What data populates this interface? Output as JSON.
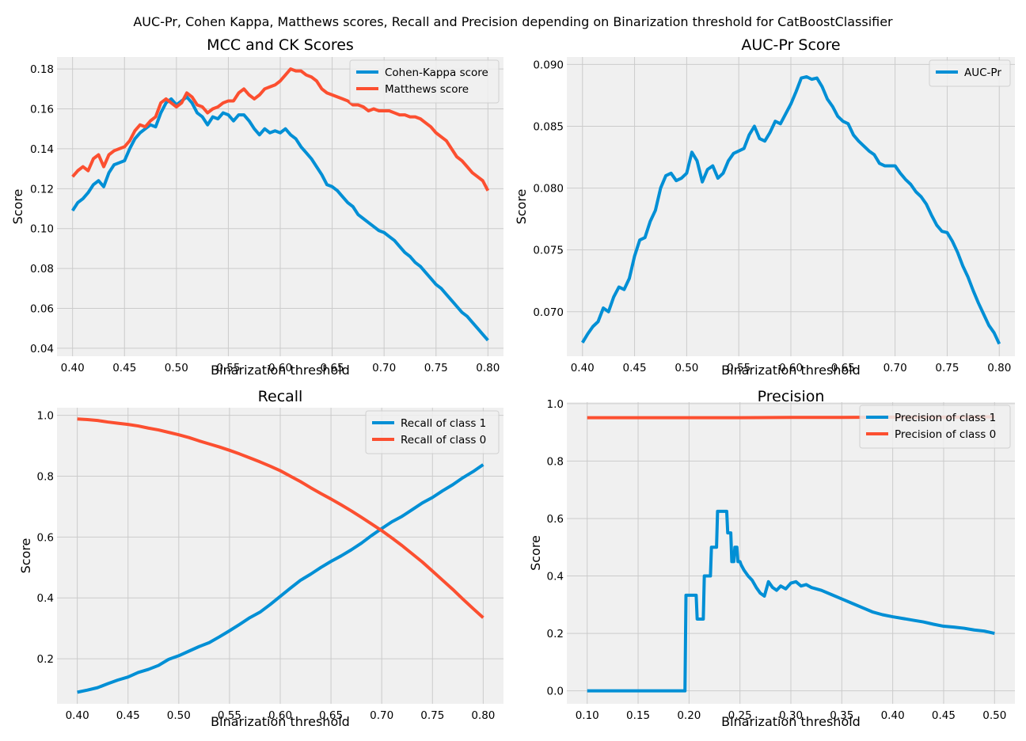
{
  "figure": {
    "suptitle": "AUC-Pr, Cohen Kappa, Matthews scores, Recall and Precision depending on Binarization threshold for CatBoostClassifier"
  },
  "colors": {
    "blue": "#008fd5",
    "orange": "#fc4f30",
    "background": "#f0f0f0",
    "grid": "#cbcbcb"
  },
  "chart_data": [
    {
      "type": "line",
      "title": "MCC and CK Scores",
      "xlabel": "Binarization threshold",
      "ylabel": "Score",
      "xlim": [
        0.385,
        0.815
      ],
      "ylim": [
        0.036,
        0.186
      ],
      "xticks": [
        0.4,
        0.45,
        0.5,
        0.55,
        0.6,
        0.65,
        0.7,
        0.75,
        0.8
      ],
      "xtick_labels": [
        "0.40",
        "0.45",
        "0.50",
        "0.55",
        "0.60",
        "0.65",
        "0.70",
        "0.75",
        "0.80"
      ],
      "yticks": [
        0.04,
        0.06,
        0.08,
        0.1,
        0.12,
        0.14,
        0.16,
        0.18
      ],
      "ytick_labels": [
        "0.04",
        "0.06",
        "0.08",
        "0.10",
        "0.12",
        "0.14",
        "0.16",
        "0.18"
      ],
      "legend_position": "top-right",
      "grid": true,
      "series": [
        {
          "name": "Cohen-Kappa score",
          "color": "#008fd5",
          "x": [
            0.4,
            0.405,
            0.41,
            0.415,
            0.42,
            0.425,
            0.43,
            0.435,
            0.44,
            0.445,
            0.45,
            0.455,
            0.46,
            0.465,
            0.47,
            0.475,
            0.48,
            0.485,
            0.49,
            0.495,
            0.5,
            0.505,
            0.51,
            0.515,
            0.52,
            0.525,
            0.53,
            0.535,
            0.54,
            0.545,
            0.55,
            0.555,
            0.56,
            0.565,
            0.57,
            0.575,
            0.58,
            0.585,
            0.59,
            0.595,
            0.6,
            0.605,
            0.61,
            0.615,
            0.62,
            0.625,
            0.63,
            0.635,
            0.64,
            0.645,
            0.65,
            0.655,
            0.66,
            0.665,
            0.67,
            0.675,
            0.68,
            0.685,
            0.69,
            0.695,
            0.7,
            0.705,
            0.71,
            0.715,
            0.72,
            0.725,
            0.73,
            0.735,
            0.74,
            0.745,
            0.75,
            0.755,
            0.76,
            0.765,
            0.77,
            0.775,
            0.78,
            0.785,
            0.79,
            0.795,
            0.8
          ],
          "y": [
            0.109,
            0.113,
            0.115,
            0.118,
            0.122,
            0.124,
            0.121,
            0.128,
            0.132,
            0.133,
            0.134,
            0.14,
            0.145,
            0.148,
            0.15,
            0.152,
            0.151,
            0.158,
            0.163,
            0.165,
            0.162,
            0.164,
            0.166,
            0.163,
            0.158,
            0.156,
            0.152,
            0.156,
            0.155,
            0.158,
            0.157,
            0.154,
            0.157,
            0.157,
            0.154,
            0.15,
            0.147,
            0.15,
            0.148,
            0.149,
            0.148,
            0.15,
            0.147,
            0.145,
            0.141,
            0.138,
            0.135,
            0.131,
            0.127,
            0.122,
            0.121,
            0.119,
            0.116,
            0.113,
            0.111,
            0.107,
            0.105,
            0.103,
            0.101,
            0.099,
            0.098,
            0.096,
            0.094,
            0.091,
            0.088,
            0.086,
            0.083,
            0.081,
            0.078,
            0.075,
            0.072,
            0.07,
            0.067,
            0.064,
            0.061,
            0.058,
            0.056,
            0.053,
            0.05,
            0.047,
            0.044
          ]
        },
        {
          "name": "Matthews score",
          "color": "#fc4f30",
          "x": [
            0.4,
            0.405,
            0.41,
            0.415,
            0.42,
            0.425,
            0.43,
            0.435,
            0.44,
            0.445,
            0.45,
            0.455,
            0.46,
            0.465,
            0.47,
            0.475,
            0.48,
            0.485,
            0.49,
            0.495,
            0.5,
            0.505,
            0.51,
            0.515,
            0.52,
            0.525,
            0.53,
            0.535,
            0.54,
            0.545,
            0.55,
            0.555,
            0.56,
            0.565,
            0.57,
            0.575,
            0.58,
            0.585,
            0.59,
            0.595,
            0.6,
            0.605,
            0.61,
            0.615,
            0.62,
            0.625,
            0.63,
            0.635,
            0.64,
            0.645,
            0.65,
            0.655,
            0.66,
            0.665,
            0.67,
            0.675,
            0.68,
            0.685,
            0.69,
            0.695,
            0.7,
            0.705,
            0.71,
            0.715,
            0.72,
            0.725,
            0.73,
            0.735,
            0.74,
            0.745,
            0.75,
            0.755,
            0.76,
            0.765,
            0.77,
            0.775,
            0.78,
            0.785,
            0.79,
            0.795,
            0.8
          ],
          "y": [
            0.126,
            0.129,
            0.131,
            0.129,
            0.135,
            0.137,
            0.131,
            0.137,
            0.139,
            0.14,
            0.141,
            0.144,
            0.149,
            0.152,
            0.151,
            0.154,
            0.156,
            0.163,
            0.165,
            0.163,
            0.161,
            0.163,
            0.168,
            0.166,
            0.162,
            0.161,
            0.158,
            0.16,
            0.161,
            0.163,
            0.164,
            0.164,
            0.168,
            0.17,
            0.167,
            0.165,
            0.167,
            0.17,
            0.171,
            0.172,
            0.174,
            0.177,
            0.18,
            0.179,
            0.179,
            0.177,
            0.176,
            0.174,
            0.17,
            0.168,
            0.167,
            0.166,
            0.165,
            0.164,
            0.162,
            0.162,
            0.161,
            0.159,
            0.16,
            0.159,
            0.159,
            0.159,
            0.158,
            0.157,
            0.157,
            0.156,
            0.156,
            0.155,
            0.153,
            0.151,
            0.148,
            0.146,
            0.144,
            0.14,
            0.136,
            0.134,
            0.131,
            0.128,
            0.126,
            0.124,
            0.119
          ]
        }
      ]
    },
    {
      "type": "line",
      "title": "AUC-Pr Score",
      "xlabel": "Binarization threshold",
      "ylabel": "Score",
      "xlim": [
        0.385,
        0.815
      ],
      "ylim": [
        0.0664,
        0.0906
      ],
      "xticks": [
        0.4,
        0.45,
        0.5,
        0.55,
        0.6,
        0.65,
        0.7,
        0.75,
        0.8
      ],
      "xtick_labels": [
        "0.40",
        "0.45",
        "0.50",
        "0.55",
        "0.60",
        "0.65",
        "0.70",
        "0.75",
        "0.80"
      ],
      "yticks": [
        0.07,
        0.075,
        0.08,
        0.085,
        0.09
      ],
      "ytick_labels": [
        "0.070",
        "0.075",
        "0.080",
        "0.085",
        "0.090"
      ],
      "legend_position": "top-right",
      "grid": true,
      "series": [
        {
          "name": "AUC-Pr",
          "color": "#008fd5",
          "x": [
            0.4,
            0.405,
            0.41,
            0.415,
            0.42,
            0.425,
            0.43,
            0.435,
            0.44,
            0.445,
            0.45,
            0.455,
            0.46,
            0.465,
            0.47,
            0.475,
            0.48,
            0.485,
            0.49,
            0.495,
            0.5,
            0.505,
            0.51,
            0.515,
            0.52,
            0.525,
            0.53,
            0.535,
            0.54,
            0.545,
            0.55,
            0.555,
            0.56,
            0.565,
            0.57,
            0.575,
            0.58,
            0.585,
            0.59,
            0.595,
            0.6,
            0.605,
            0.61,
            0.615,
            0.62,
            0.625,
            0.63,
            0.635,
            0.64,
            0.645,
            0.65,
            0.655,
            0.66,
            0.665,
            0.67,
            0.675,
            0.68,
            0.685,
            0.69,
            0.695,
            0.7,
            0.705,
            0.71,
            0.715,
            0.72,
            0.725,
            0.73,
            0.735,
            0.74,
            0.745,
            0.75,
            0.755,
            0.76,
            0.765,
            0.77,
            0.775,
            0.78,
            0.785,
            0.79,
            0.795,
            0.8
          ],
          "y": [
            0.0675,
            0.0682,
            0.0688,
            0.0692,
            0.0703,
            0.07,
            0.0712,
            0.072,
            0.0718,
            0.0727,
            0.0745,
            0.0758,
            0.076,
            0.0773,
            0.0782,
            0.08,
            0.081,
            0.0812,
            0.0806,
            0.0808,
            0.0812,
            0.0829,
            0.0822,
            0.0805,
            0.0815,
            0.0818,
            0.0808,
            0.0812,
            0.0822,
            0.0828,
            0.083,
            0.0832,
            0.0843,
            0.085,
            0.084,
            0.0838,
            0.0845,
            0.0854,
            0.0852,
            0.086,
            0.0868,
            0.0878,
            0.0889,
            0.089,
            0.0888,
            0.0889,
            0.0882,
            0.0872,
            0.0866,
            0.0858,
            0.0854,
            0.0852,
            0.0843,
            0.0838,
            0.0834,
            0.083,
            0.0827,
            0.082,
            0.0818,
            0.0818,
            0.0818,
            0.0812,
            0.0807,
            0.0803,
            0.0797,
            0.0793,
            0.0787,
            0.0778,
            0.077,
            0.0765,
            0.0764,
            0.0757,
            0.0748,
            0.0737,
            0.0728,
            0.0717,
            0.0707,
            0.0698,
            0.0689,
            0.0683,
            0.0674
          ]
        }
      ]
    },
    {
      "type": "line",
      "title": "Recall",
      "xlabel": "Binarization threshold",
      "ylabel": "Score",
      "xlim": [
        0.38,
        0.82
      ],
      "ylim": [
        0.052,
        1.025
      ],
      "xticks": [
        0.4,
        0.45,
        0.5,
        0.55,
        0.6,
        0.65,
        0.7,
        0.75,
        0.8
      ],
      "xtick_labels": [
        "0.40",
        "0.45",
        "0.50",
        "0.55",
        "0.60",
        "0.65",
        "0.70",
        "0.75",
        "0.80"
      ],
      "yticks": [
        0.2,
        0.4,
        0.6,
        0.8,
        1.0
      ],
      "ytick_labels": [
        "0.2",
        "0.4",
        "0.6",
        "0.8",
        "1.0"
      ],
      "legend_position": "top-right",
      "grid": true,
      "series": [
        {
          "name": "Recall of class 1",
          "color": "#008fd5",
          "x": [
            0.4,
            0.41,
            0.42,
            0.43,
            0.44,
            0.45,
            0.46,
            0.47,
            0.48,
            0.49,
            0.5,
            0.51,
            0.52,
            0.53,
            0.54,
            0.55,
            0.56,
            0.57,
            0.58,
            0.59,
            0.6,
            0.61,
            0.62,
            0.63,
            0.64,
            0.65,
            0.66,
            0.67,
            0.68,
            0.69,
            0.7,
            0.71,
            0.72,
            0.73,
            0.74,
            0.75,
            0.76,
            0.77,
            0.78,
            0.79,
            0.8
          ],
          "y": [
            0.09,
            0.097,
            0.105,
            0.118,
            0.13,
            0.14,
            0.155,
            0.165,
            0.178,
            0.198,
            0.21,
            0.225,
            0.24,
            0.253,
            0.272,
            0.292,
            0.313,
            0.335,
            0.353,
            0.378,
            0.405,
            0.432,
            0.458,
            0.478,
            0.5,
            0.52,
            0.538,
            0.558,
            0.58,
            0.605,
            0.628,
            0.65,
            0.668,
            0.69,
            0.712,
            0.73,
            0.752,
            0.772,
            0.795,
            0.815,
            0.838
          ]
        },
        {
          "name": "Recall of class 0",
          "color": "#fc4f30",
          "x": [
            0.4,
            0.41,
            0.42,
            0.43,
            0.44,
            0.45,
            0.46,
            0.47,
            0.48,
            0.49,
            0.5,
            0.51,
            0.52,
            0.53,
            0.54,
            0.55,
            0.56,
            0.57,
            0.58,
            0.59,
            0.6,
            0.61,
            0.62,
            0.63,
            0.64,
            0.65,
            0.66,
            0.67,
            0.68,
            0.69,
            0.7,
            0.71,
            0.72,
            0.73,
            0.74,
            0.75,
            0.76,
            0.77,
            0.78,
            0.79,
            0.8
          ],
          "y": [
            0.988,
            0.986,
            0.983,
            0.978,
            0.974,
            0.97,
            0.965,
            0.958,
            0.952,
            0.944,
            0.936,
            0.927,
            0.916,
            0.906,
            0.896,
            0.885,
            0.873,
            0.86,
            0.847,
            0.833,
            0.818,
            0.8,
            0.782,
            0.762,
            0.743,
            0.725,
            0.706,
            0.686,
            0.665,
            0.643,
            0.621,
            0.597,
            0.572,
            0.545,
            0.518,
            0.488,
            0.458,
            0.428,
            0.396,
            0.365,
            0.335
          ]
        }
      ]
    },
    {
      "type": "line",
      "title": "Precision",
      "xlabel": "Binarization threshold",
      "ylabel": "Score",
      "xlim": [
        0.08,
        0.52
      ],
      "ylim": [
        -0.045,
        1.005
      ],
      "xticks": [
        0.1,
        0.15,
        0.2,
        0.25,
        0.3,
        0.35,
        0.4,
        0.45,
        0.5
      ],
      "xtick_labels": [
        "0.10",
        "0.15",
        "0.20",
        "0.25",
        "0.30",
        "0.35",
        "0.40",
        "0.45",
        "0.50"
      ],
      "yticks": [
        0.0,
        0.2,
        0.4,
        0.6,
        0.8,
        1.0
      ],
      "ytick_labels": [
        "0.0",
        "0.2",
        "0.4",
        "0.6",
        "0.8",
        "1.0"
      ],
      "legend_position": "top-right",
      "grid": true,
      "series": [
        {
          "name": "Precision of class 1",
          "color": "#008fd5",
          "x": [
            0.1,
            0.196,
            0.197,
            0.207,
            0.208,
            0.214,
            0.215,
            0.221,
            0.222,
            0.227,
            0.228,
            0.237,
            0.238,
            0.241,
            0.242,
            0.244,
            0.245,
            0.247,
            0.248,
            0.25,
            0.251,
            0.254,
            0.258,
            0.262,
            0.266,
            0.27,
            0.274,
            0.278,
            0.282,
            0.286,
            0.29,
            0.295,
            0.3,
            0.305,
            0.31,
            0.315,
            0.32,
            0.33,
            0.34,
            0.35,
            0.36,
            0.37,
            0.38,
            0.39,
            0.4,
            0.41,
            0.42,
            0.43,
            0.44,
            0.45,
            0.46,
            0.47,
            0.48,
            0.49,
            0.5
          ],
          "y": [
            0.0,
            0.0,
            0.333,
            0.333,
            0.25,
            0.25,
            0.4,
            0.4,
            0.5,
            0.5,
            0.625,
            0.625,
            0.55,
            0.55,
            0.45,
            0.45,
            0.5,
            0.5,
            0.45,
            0.45,
            0.44,
            0.42,
            0.4,
            0.385,
            0.36,
            0.34,
            0.33,
            0.38,
            0.36,
            0.35,
            0.365,
            0.355,
            0.375,
            0.38,
            0.365,
            0.37,
            0.36,
            0.35,
            0.335,
            0.32,
            0.305,
            0.29,
            0.275,
            0.265,
            0.258,
            0.252,
            0.246,
            0.24,
            0.232,
            0.225,
            0.222,
            0.218,
            0.212,
            0.208,
            0.2
          ]
        },
        {
          "name": "Precision of class 0",
          "color": "#fc4f30",
          "x": [
            0.1,
            0.15,
            0.2,
            0.25,
            0.3,
            0.35,
            0.4,
            0.45,
            0.5
          ],
          "y": [
            0.951,
            0.951,
            0.951,
            0.951,
            0.952,
            0.952,
            0.953,
            0.953,
            0.954
          ]
        }
      ]
    }
  ]
}
